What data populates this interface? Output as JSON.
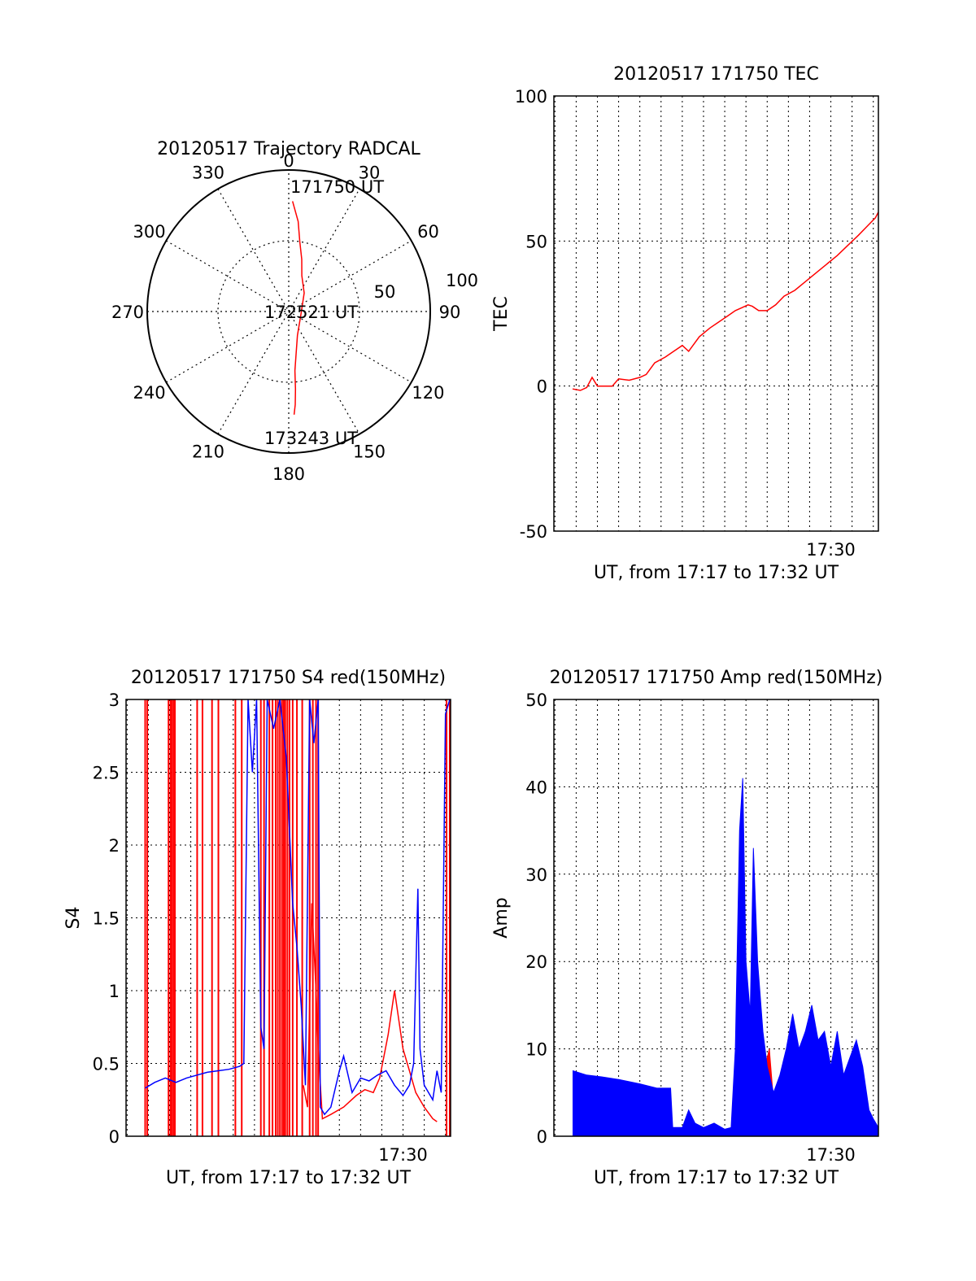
{
  "figure": {
    "date": "20120517"
  },
  "chart_data": [
    {
      "id": "trajectory",
      "type": "polar",
      "title": "20120517 Trajectory RADCAL",
      "angle_labels": [
        "0",
        "30",
        "60",
        "90",
        "120",
        "150",
        "180",
        "210",
        "240",
        "270",
        "300",
        "330"
      ],
      "radial_labels": [
        "50",
        "100"
      ],
      "rlim": [
        0,
        100
      ],
      "grid": true,
      "annotations": [
        "171750 UT",
        "172521 UT",
        "173243 UT"
      ],
      "series": [
        {
          "color": "#ff0000",
          "points": [
            [
              2,
              78
            ],
            [
              6,
              64
            ],
            [
              9,
              50
            ],
            [
              14,
              38
            ],
            [
              20,
              27
            ],
            [
              40,
              17
            ],
            [
              110,
              9
            ],
            [
              160,
              18
            ],
            [
              170,
              30
            ],
            [
              174,
              42
            ],
            [
              175,
              55
            ],
            [
              176,
              66
            ],
            [
              177,
              73
            ]
          ]
        }
      ]
    },
    {
      "id": "tec",
      "type": "line",
      "title": "20120517 171750 TEC",
      "xlabel": "UT, from 17:17 to 17:32 UT",
      "ylabel": "TEC",
      "x_unit": "minutes after 17:00 UT",
      "xlim": [
        16.95,
        32.24
      ],
      "ylim": [
        -50,
        100
      ],
      "yticks": [
        "-50",
        "0",
        "50",
        "100"
      ],
      "xtick_labels": [
        {
          "x": 30,
          "label": "17:30"
        }
      ],
      "grid": true,
      "series": [
        {
          "color": "#ff0000",
          "points": [
            [
              17.83,
              -1
            ],
            [
              18.2,
              -1.5
            ],
            [
              18.5,
              -0.5
            ],
            [
              18.75,
              3
            ],
            [
              19,
              0
            ],
            [
              19.4,
              0
            ],
            [
              19.7,
              0
            ],
            [
              20,
              2.5
            ],
            [
              20.5,
              2
            ],
            [
              21,
              3
            ],
            [
              21.3,
              4
            ],
            [
              21.7,
              8
            ],
            [
              22.2,
              10
            ],
            [
              22.6,
              12
            ],
            [
              23,
              14
            ],
            [
              23.3,
              12
            ],
            [
              23.8,
              17
            ],
            [
              24.3,
              20
            ],
            [
              24.7,
              22
            ],
            [
              25.1,
              24
            ],
            [
              25.5,
              26
            ],
            [
              25.8,
              27
            ],
            [
              26.1,
              28
            ],
            [
              26.3,
              27.5
            ],
            [
              26.6,
              26
            ],
            [
              27.0,
              26
            ],
            [
              27.4,
              28
            ],
            [
              27.8,
              31
            ],
            [
              28.3,
              33
            ],
            [
              28.8,
              36
            ],
            [
              29.3,
              39
            ],
            [
              29.8,
              42
            ],
            [
              30.3,
              45
            ],
            [
              30.8,
              48.5
            ],
            [
              31.3,
              52
            ],
            [
              31.7,
              55
            ],
            [
              32.1,
              58
            ],
            [
              32.24,
              60
            ]
          ]
        }
      ]
    },
    {
      "id": "s4",
      "type": "line",
      "title": "20120517 171750 S4 red(150MHz)",
      "xlabel": "UT, from 17:17 to 17:32 UT",
      "ylabel": "S4",
      "x_unit": "minutes after 17:00 UT",
      "xlim": [
        16.95,
        32.24
      ],
      "ylim": [
        0,
        3
      ],
      "yticks": [
        "0",
        "0.5",
        "1",
        "1.5",
        "2",
        "2.5",
        "3"
      ],
      "xtick_labels": [
        {
          "x": 30,
          "label": "17:30"
        }
      ],
      "grid": true,
      "spikes": {
        "color": "#ff0000",
        "x": [
          17.85,
          17.95,
          18.95,
          19.05,
          19.12,
          19.2,
          19.25,
          20.3,
          20.55,
          21.0,
          21.3,
          22.1,
          22.4,
          23.3,
          23.45,
          23.7,
          23.85,
          24.0,
          24.1,
          24.2,
          24.3,
          24.38,
          24.45,
          24.55,
          24.65,
          24.8,
          25.0,
          25.25,
          25.6,
          25.75,
          25.9,
          26.0,
          32.05,
          32.2
        ]
      },
      "series": [
        {
          "name_color": "red",
          "color": "#ff0000",
          "points": [
            [
              25.3,
              0.35
            ],
            [
              25.5,
              0.2
            ],
            [
              25.7,
              1.6
            ],
            [
              25.9,
              1.0
            ],
            [
              26.0,
              0.6
            ],
            [
              26.2,
              0.12
            ],
            [
              26.6,
              0.15
            ],
            [
              27.2,
              0.2
            ],
            [
              27.8,
              0.28
            ],
            [
              28.2,
              0.32
            ],
            [
              28.6,
              0.3
            ],
            [
              28.9,
              0.4
            ],
            [
              29.1,
              0.55
            ],
            [
              29.3,
              0.7
            ],
            [
              29.5,
              0.9
            ],
            [
              29.6,
              1.0
            ],
            [
              29.8,
              0.8
            ],
            [
              30.0,
              0.6
            ],
            [
              30.3,
              0.45
            ],
            [
              30.6,
              0.3
            ],
            [
              31.0,
              0.2
            ],
            [
              31.4,
              0.12
            ],
            [
              31.6,
              0.1
            ]
          ]
        },
        {
          "name_color": "blue",
          "color": "#0000ff",
          "points": [
            [
              17.85,
              0.33
            ],
            [
              18.3,
              0.37
            ],
            [
              18.8,
              0.4
            ],
            [
              19.3,
              0.37
            ],
            [
              19.8,
              0.4
            ],
            [
              20.3,
              0.42
            ],
            [
              20.8,
              0.44
            ],
            [
              21.3,
              0.45
            ],
            [
              21.8,
              0.46
            ],
            [
              22.3,
              0.48
            ],
            [
              22.5,
              0.5
            ],
            [
              22.7,
              3.0
            ],
            [
              22.9,
              2.5
            ],
            [
              23.1,
              3.0
            ],
            [
              23.3,
              0.75
            ],
            [
              23.45,
              0.6
            ],
            [
              23.6,
              3.0
            ],
            [
              23.9,
              2.8
            ],
            [
              24.2,
              3.0
            ],
            [
              24.5,
              2.6
            ],
            [
              24.8,
              1.6
            ],
            [
              25.0,
              1.3
            ],
            [
              25.2,
              0.9
            ],
            [
              25.4,
              0.35
            ],
            [
              25.6,
              3.0
            ],
            [
              25.8,
              2.7
            ],
            [
              26.0,
              3.0
            ],
            [
              26.1,
              0.2
            ],
            [
              26.3,
              0.15
            ],
            [
              26.6,
              0.2
            ],
            [
              27.0,
              0.45
            ],
            [
              27.2,
              0.55
            ],
            [
              27.6,
              0.3
            ],
            [
              28.0,
              0.4
            ],
            [
              28.4,
              0.38
            ],
            [
              28.8,
              0.42
            ],
            [
              29.2,
              0.45
            ],
            [
              29.6,
              0.35
            ],
            [
              30.0,
              0.28
            ],
            [
              30.3,
              0.35
            ],
            [
              30.5,
              0.5
            ],
            [
              30.7,
              1.7
            ],
            [
              30.8,
              0.6
            ],
            [
              31.0,
              0.35
            ],
            [
              31.4,
              0.25
            ],
            [
              31.6,
              0.45
            ],
            [
              31.8,
              0.3
            ],
            [
              32.0,
              2.9
            ],
            [
              32.2,
              3.0
            ]
          ]
        }
      ]
    },
    {
      "id": "amp",
      "type": "area",
      "title": "20120517 171750 Amp red(150MHz)",
      "xlabel": "UT, from 17:17 to 17:32 UT",
      "ylabel": "Amp",
      "x_unit": "minutes after 17:00 UT",
      "xlim": [
        16.95,
        32.24
      ],
      "ylim": [
        0,
        50
      ],
      "yticks": [
        "0",
        "10",
        "20",
        "30",
        "40",
        "50"
      ],
      "xtick_labels": [
        {
          "x": 30,
          "label": "17:30"
        }
      ],
      "grid": true,
      "series": [
        {
          "name_color": "red",
          "color": "#ff0000",
          "points": [
            [
              17.85,
              0.3
            ],
            [
              20,
              0.3
            ],
            [
              22.8,
              0.3
            ],
            [
              25.5,
              0.5
            ],
            [
              25.7,
              2
            ],
            [
              25.9,
              9
            ],
            [
              26.1,
              6
            ],
            [
              26.3,
              2
            ],
            [
              26.6,
              1
            ],
            [
              26.9,
              8
            ],
            [
              27.1,
              10
            ],
            [
              27.3,
              4
            ],
            [
              27.6,
              2
            ],
            [
              28.0,
              1
            ],
            [
              28.5,
              0.8
            ],
            [
              28.9,
              3
            ],
            [
              29.2,
              2
            ],
            [
              29.5,
              1.5
            ],
            [
              30,
              1.2
            ],
            [
              30.5,
              0.8
            ],
            [
              31.0,
              0.8
            ],
            [
              31.5,
              1.2
            ],
            [
              32.0,
              0.7
            ],
            [
              32.24,
              0.3
            ]
          ]
        },
        {
          "name_color": "blue",
          "color": "#0000ff",
          "points": [
            [
              17.85,
              7.5
            ],
            [
              18.5,
              7
            ],
            [
              19.2,
              6.8
            ],
            [
              20,
              6.5
            ],
            [
              21,
              6
            ],
            [
              21.8,
              5.5
            ],
            [
              22.45,
              5.5
            ],
            [
              22.55,
              1
            ],
            [
              23.0,
              1
            ],
            [
              23.3,
              3
            ],
            [
              23.6,
              1.5
            ],
            [
              24.0,
              1
            ],
            [
              24.5,
              1.5
            ],
            [
              25.0,
              0.8
            ],
            [
              25.3,
              1
            ],
            [
              25.5,
              10
            ],
            [
              25.7,
              35
            ],
            [
              25.85,
              41
            ],
            [
              26.0,
              20
            ],
            [
              26.2,
              14
            ],
            [
              26.35,
              33
            ],
            [
              26.55,
              20
            ],
            [
              26.8,
              12
            ],
            [
              27.0,
              8
            ],
            [
              27.3,
              5
            ],
            [
              27.6,
              7
            ],
            [
              27.9,
              10
            ],
            [
              28.2,
              14
            ],
            [
              28.5,
              10
            ],
            [
              28.8,
              12
            ],
            [
              29.1,
              15
            ],
            [
              29.4,
              11
            ],
            [
              29.7,
              12
            ],
            [
              30.0,
              8
            ],
            [
              30.3,
              12
            ],
            [
              30.6,
              7
            ],
            [
              30.9,
              9
            ],
            [
              31.2,
              11
            ],
            [
              31.5,
              8
            ],
            [
              31.8,
              3
            ],
            [
              32.0,
              2
            ],
            [
              32.24,
              1
            ]
          ]
        }
      ]
    }
  ]
}
